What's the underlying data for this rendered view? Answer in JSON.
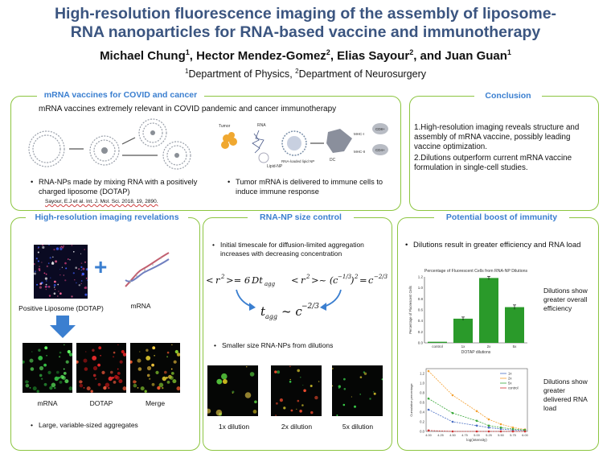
{
  "header": {
    "title_line1": "High-resolution fluorescence imaging of the assembly of liposome-",
    "title_line2": "RNA nanoparticles for RNA-based vaccine and immunotherapy",
    "authors": [
      {
        "name": "Michael Chung",
        "aff": "1",
        "sep": ", "
      },
      {
        "name": "Hector Mendez-Gomez",
        "aff": "2",
        "sep": ", "
      },
      {
        "name": "Elias Sayour",
        "aff": "2",
        "sep": ", and "
      },
      {
        "name": "Juan Guan",
        "aff": "1",
        "sep": ""
      }
    ],
    "affiliations": [
      {
        "num": "1",
        "name": "Department of Physics",
        "sep": ", "
      },
      {
        "num": "2",
        "name": "Department of Neurosurgery",
        "sep": ""
      }
    ]
  },
  "covid": {
    "title": "mRNA vaccines for COVID and cancer",
    "subtitle": "mRNA vaccines extremely relevant in COVID pandemic and cancer immunotherapy",
    "bullet1": "RNA-NPs made by mixing RNA with a positively charged liposome (DOTAP)",
    "citation": "Sayour, E.J et al. Int. J. Mol. Sci. 2018, 19, 2890.",
    "bullet2": "Tumor mRNA is delivered to immune cells to induce immune response",
    "diagram_labels": {
      "tumor": "Tumor",
      "rna": "RNA",
      "lipid": "Lipid-NP",
      "np": "RNA-loaded lipid NP",
      "mhc1": "MHC-I",
      "mhc2": "MHC-II",
      "cd8": "CD8+",
      "cd4": "CD4+",
      "dc": "DC"
    }
  },
  "conclusion": {
    "title": "Conclusion",
    "items": [
      "1.High-resolution imaging reveals structure and assembly of mRNA vaccine, possibly leading vaccine optimization.",
      "2.Dilutions outperform current mRNA vaccine formulation in single-cell studies."
    ]
  },
  "imaging": {
    "title": "High-resolution imaging revelations",
    "plus": "+",
    "liposome_label": "Positive Liposome (DOTAP)",
    "mrna_label": "mRNA",
    "captions": [
      "mRNA",
      "DOTAP",
      "Merge"
    ],
    "bullet": "Large, variable-sized aggregates"
  },
  "size": {
    "title": "RNA-NP size control",
    "bullet1": "Initial timescale for diffusion-limited aggregation increases with decreasing concentration",
    "bullet2": "Smaller size RNA-NPs from dilutions",
    "captions": [
      "1x dilution",
      "2x dilution",
      "5x dilution"
    ]
  },
  "immunity": {
    "title": "Potential boost of immunity",
    "bullet": "Dilutions result in greater efficiency and RNA load",
    "note1": "Dilutions show greater overall efficiency",
    "note2": "Dilutions show greater delivered RNA load"
  },
  "chart_data": [
    {
      "type": "bar",
      "title": "Percentage of Fluorescent Cells from RNA-NP Dilutions",
      "xlabel": "DOTAP dilutions",
      "ylabel": "Percentage of Fluorescent Cells",
      "categories": [
        "control",
        "1x",
        "2x",
        "5x"
      ],
      "values": [
        0.02,
        0.44,
        1.18,
        0.65
      ],
      "errors": [
        0.0,
        0.03,
        0.03,
        0.04
      ],
      "ylim": [
        0,
        1.2
      ],
      "yticks": [
        "0.0",
        "0.2",
        "0.4",
        "0.6",
        "0.8",
        "1.0",
        "1.2"
      ],
      "color": "#2a9a2a"
    },
    {
      "type": "line",
      "xlabel": "log(intensity)",
      "ylabel": "Cumulative percentage",
      "x": [
        4.0,
        4.5,
        5.0,
        5.25,
        5.5,
        5.75,
        6.0
      ],
      "xticks": [
        "4.00",
        "4.25",
        "4.50",
        "4.75",
        "5.00",
        "5.25",
        "5.50",
        "5.75",
        "6.00"
      ],
      "yticks": [
        "0.0",
        "0.2",
        "0.4",
        "0.6",
        "0.8",
        "1.0",
        "1.2"
      ],
      "xlim": [
        3.95,
        6.05
      ],
      "ylim": [
        0,
        1.3
      ],
      "series": [
        {
          "name": "1x",
          "color": "#4a6fc4",
          "values": [
            0.45,
            0.2,
            0.12,
            0.08,
            0.05,
            0.03,
            0.02
          ]
        },
        {
          "name": "2x",
          "color": "#f5a030",
          "values": [
            1.25,
            0.75,
            0.42,
            0.25,
            0.15,
            0.08,
            0.04
          ]
        },
        {
          "name": "5x",
          "color": "#3aa83a",
          "values": [
            0.68,
            0.38,
            0.22,
            0.12,
            0.08,
            0.05,
            0.03
          ]
        },
        {
          "name": "control",
          "color": "#d03030",
          "values": [
            0.02,
            0.0,
            0.0,
            0.0,
            0.0,
            0.0,
            0.0
          ]
        }
      ]
    }
  ]
}
